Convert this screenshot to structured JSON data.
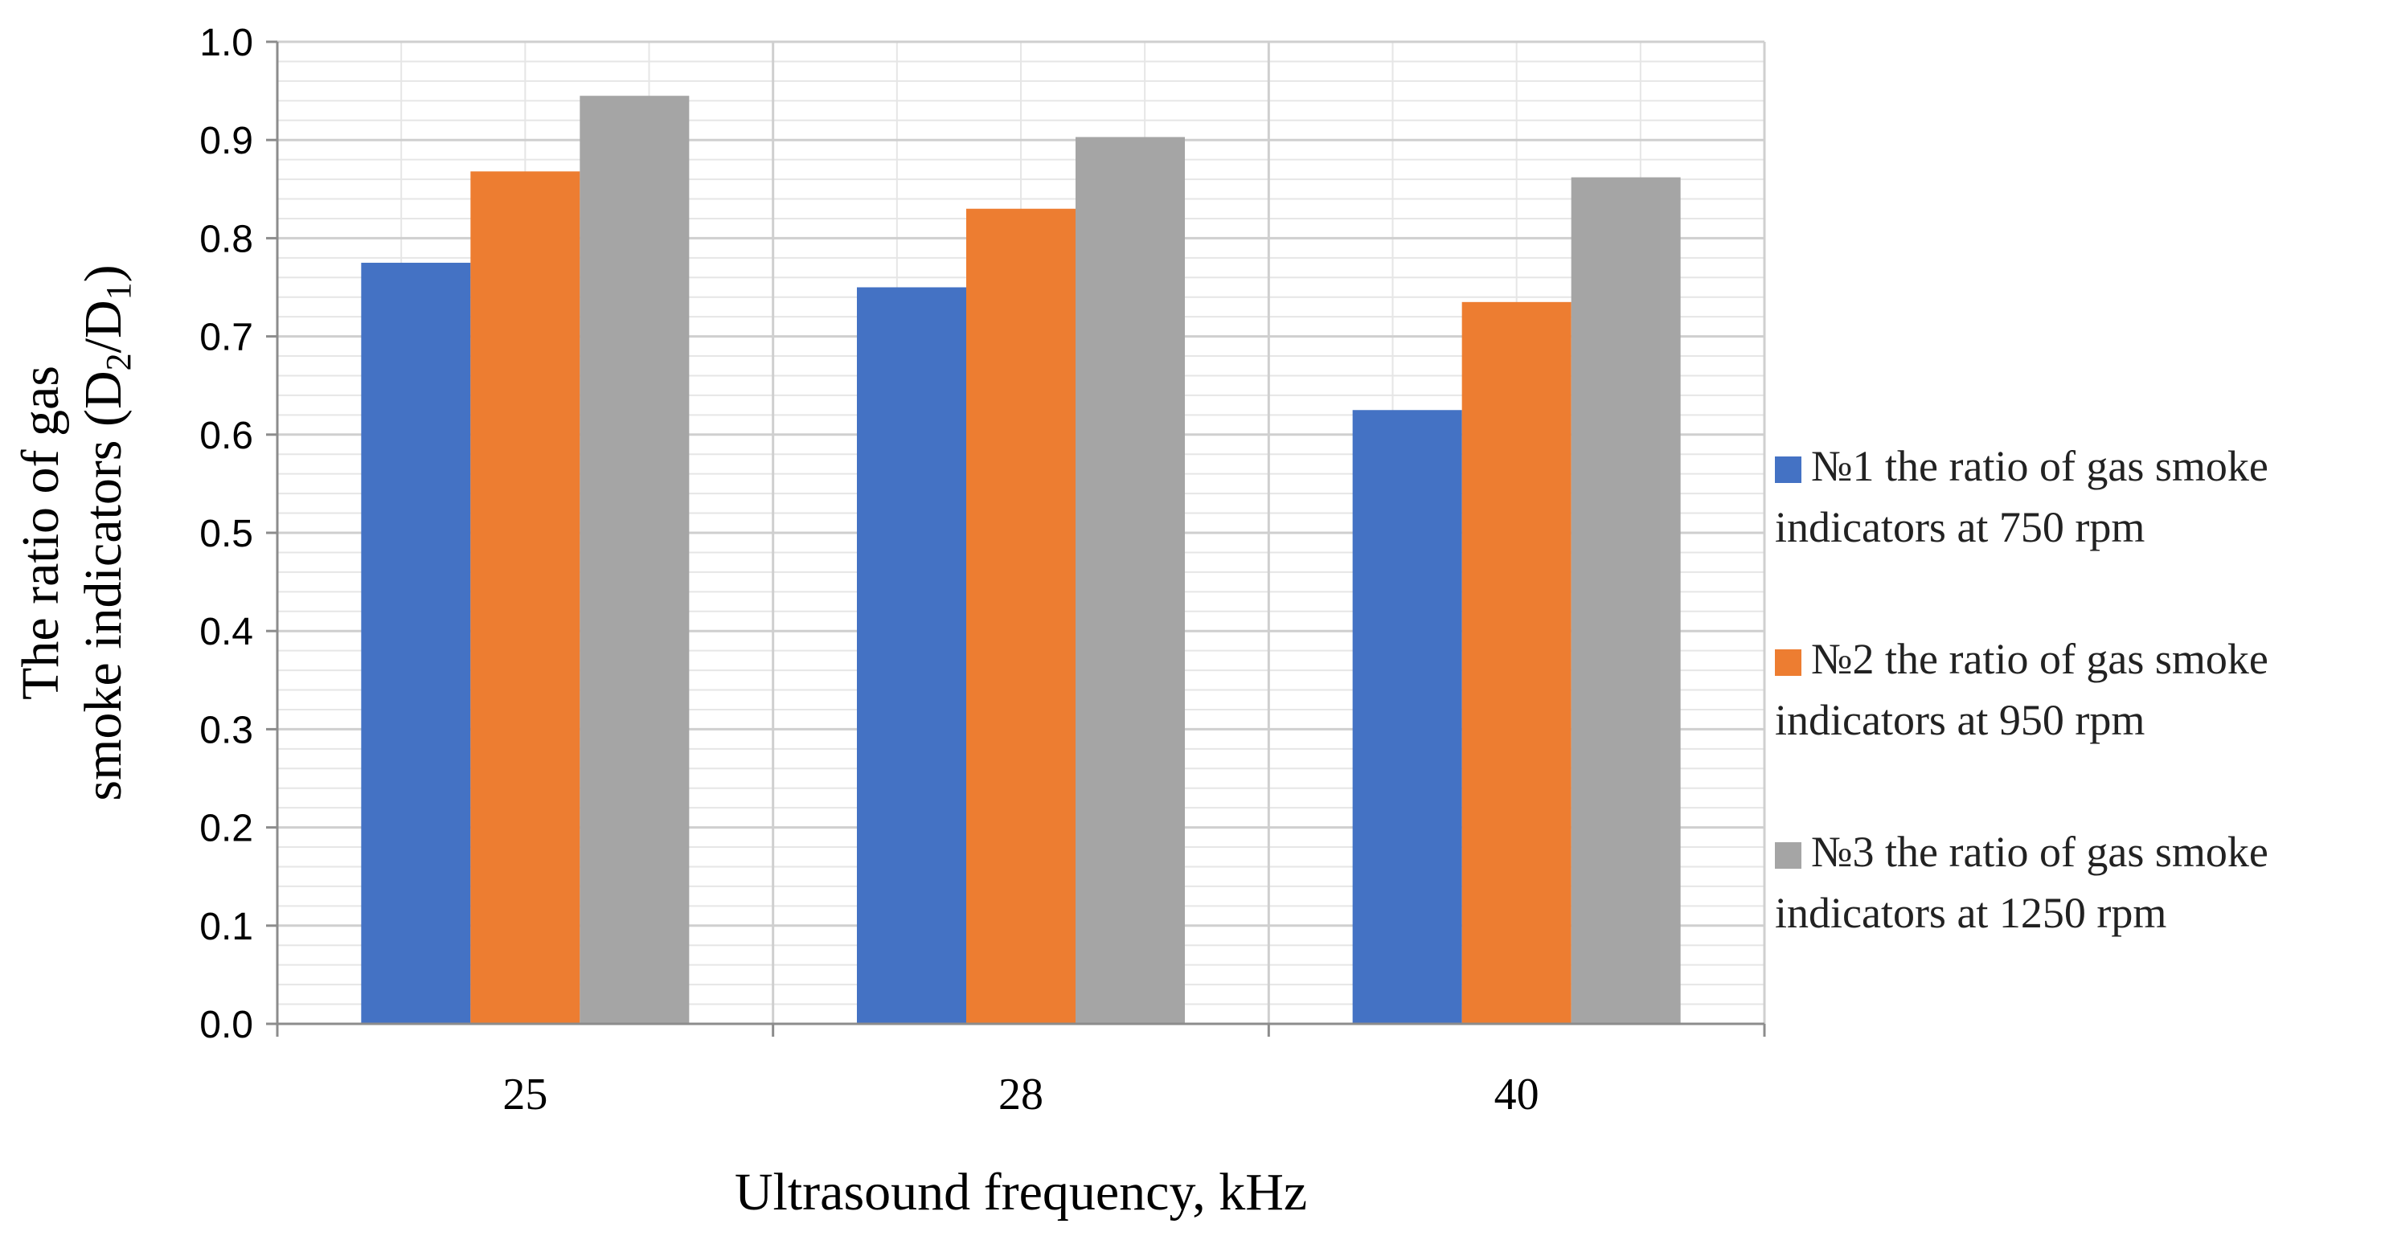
{
  "chart_data": {
    "type": "bar",
    "title": "",
    "categories": [
      "25",
      "28",
      "40"
    ],
    "series": [
      {
        "name_line1": "№1 the ratio of gas smoke",
        "name_line2": "indicators at 750 rpm",
        "color": "#4472C4",
        "values": [
          0.775,
          0.75,
          0.625
        ]
      },
      {
        "name_line1": "№2 the ratio of gas smoke",
        "name_line2": "indicators at 950 rpm",
        "color": "#ED7D31",
        "values": [
          0.868,
          0.83,
          0.735
        ]
      },
      {
        "name_line1": "№3 the ratio of gas smoke",
        "name_line2": "indicators at 1250 rpm",
        "color": "#A5A5A5",
        "values": [
          0.945,
          0.903,
          0.862
        ]
      }
    ],
    "xlabel": "Ultrasound frequency, kHz",
    "ylabel_line1": "The ratio of gas",
    "ylabel_line2_prefix": "smoke indicators (D",
    "ylabel_sub1": "2",
    "ylabel_slash": "/D",
    "ylabel_sub2": "1",
    "ylabel_close": ")",
    "ylim": [
      0,
      1.0
    ],
    "y_ticks": [
      "0.0",
      "0.1",
      "0.2",
      "0.3",
      "0.4",
      "0.5",
      "0.6",
      "0.7",
      "0.8",
      "0.9",
      "1.0"
    ],
    "grid": true,
    "legend_position": "right"
  }
}
